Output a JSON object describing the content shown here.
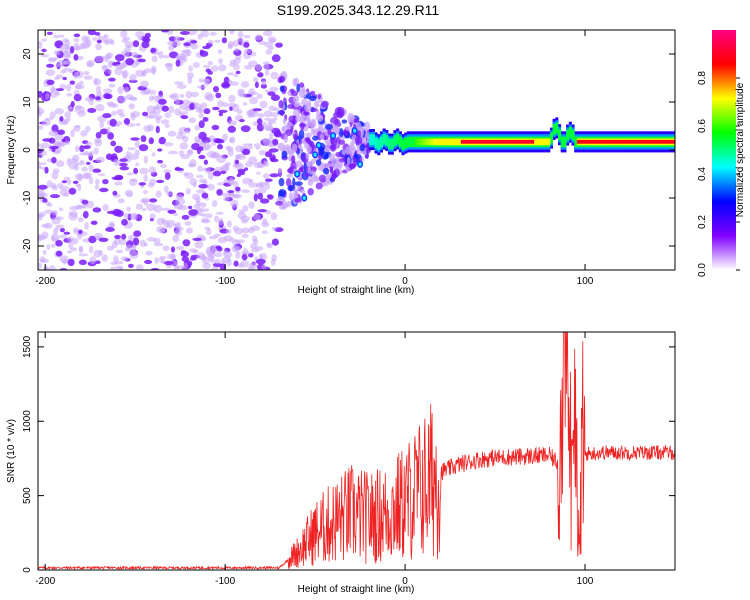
{
  "figure": {
    "title": "S199.2025.343.12.29.R11"
  },
  "chart_data": [
    {
      "type": "heatmap",
      "title": "S199.2025.343.12.29.R11",
      "xlabel": "Height of straight line (km)",
      "ylabel": "Frequency (Hz)",
      "xlim": [
        -204,
        150
      ],
      "ylim": [
        -25,
        25
      ],
      "xticks": [
        "-200",
        "-100",
        "0",
        "100"
      ],
      "yticks": [
        "-20",
        "-10",
        "0",
        "10",
        "20"
      ],
      "grid": false,
      "colorbar": {
        "label": "Normalized spectral amplitude",
        "range": [
          0,
          1
        ],
        "ticks": [
          "0.0",
          "0.2",
          "0.4",
          "0.6",
          "0.8"
        ],
        "colors": [
          "#ffffff",
          "#8000ff",
          "#0000ff",
          "#00ffff",
          "#00ff00",
          "#ffff00",
          "#ff0000",
          "#ff0080"
        ]
      },
      "features": {
        "noise_region_x": [
          -204,
          -70
        ],
        "noise_amplitude": 0.15,
        "transition_region_x": [
          -70,
          -20
        ],
        "signal_frequency_hz": 1.7,
        "signal_start_x": -20,
        "signal_peak_amplitude": 0.9,
        "signal_peak_region_x": [
          30,
          70
        ],
        "signal_disturbance_x": [
          80,
          95
        ]
      }
    },
    {
      "type": "line",
      "xlabel": "Height of straight line (km)",
      "ylabel": "SNR (10 * v/v)",
      "xlim": [
        -204,
        150
      ],
      "ylim": [
        0,
        1600
      ],
      "xticks": [
        "-200",
        "-100",
        "0",
        "100"
      ],
      "yticks": [
        "0",
        "500",
        "1000",
        "1500"
      ],
      "grid": false,
      "color": "#ee2222",
      "x": [
        -204,
        -100,
        -70,
        -60,
        -50,
        -40,
        -30,
        -20,
        -10,
        0,
        10,
        20,
        30,
        40,
        50,
        60,
        70,
        80,
        85,
        90,
        95,
        100,
        110,
        130,
        150
      ],
      "y": [
        15,
        15,
        15,
        120,
        250,
        320,
        380,
        350,
        380,
        450,
        560,
        660,
        710,
        740,
        755,
        760,
        765,
        770,
        720,
        1400,
        700,
        780,
        790,
        790,
        790
      ]
    }
  ]
}
